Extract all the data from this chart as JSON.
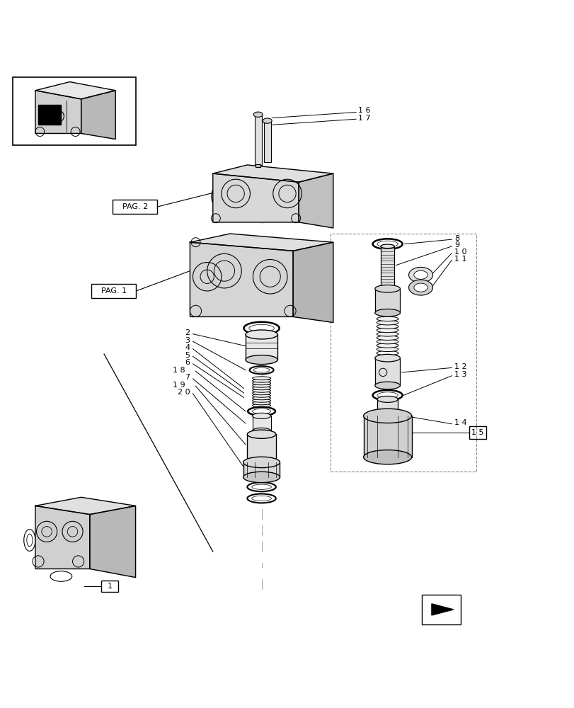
{
  "bg_color": "#ffffff",
  "line_color": "#000000",
  "light_gray": "#cccccc",
  "dashed_color": "#aaaaaa",
  "title": "",
  "figsize": [
    8.12,
    10.0
  ],
  "dpi": 100
}
